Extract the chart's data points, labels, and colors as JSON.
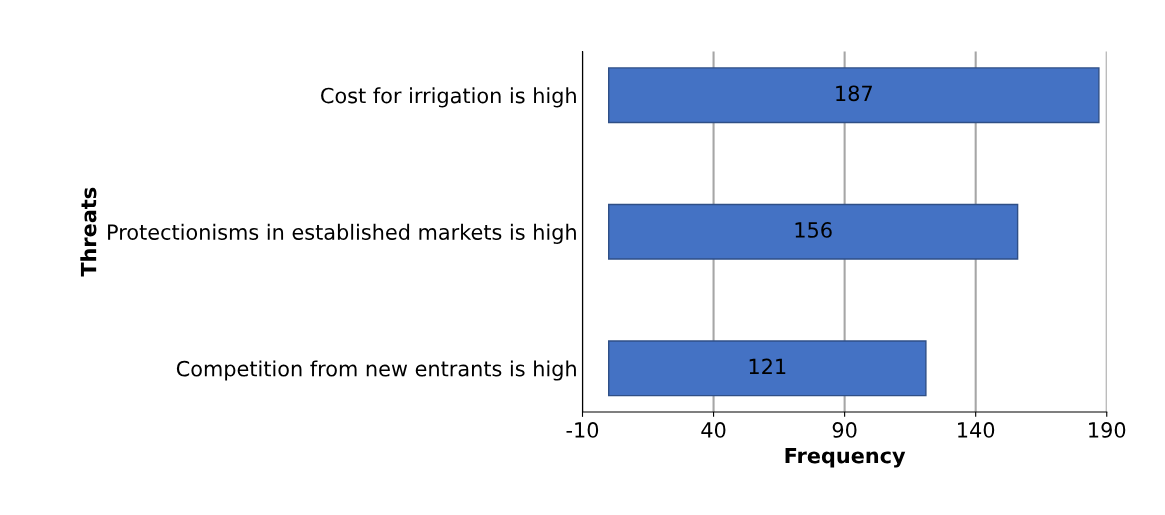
{
  "chart_data": {
    "type": "bar",
    "orientation": "horizontal",
    "ylabel": "Threats",
    "xlabel": "Frequency",
    "categories": [
      "Cost for irrigation is high",
      "Protectionisms in established markets is high",
      "Competition from new entrants is high"
    ],
    "values": [
      187,
      156,
      121
    ],
    "color": "#4472c4",
    "data_labels": true,
    "xlim": [
      -10,
      190
    ],
    "xticks": [
      -10,
      40,
      90,
      140,
      190
    ],
    "grid": "x"
  }
}
